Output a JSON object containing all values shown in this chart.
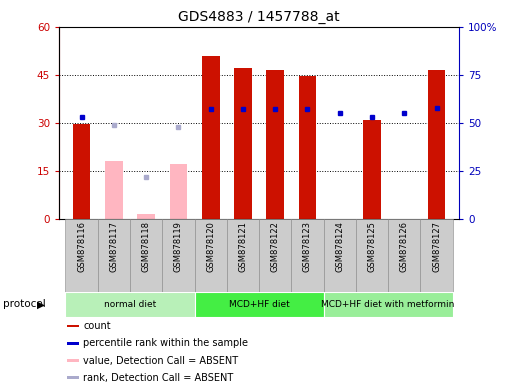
{
  "title": "GDS4883 / 1457788_at",
  "samples": [
    "GSM878116",
    "GSM878117",
    "GSM878118",
    "GSM878119",
    "GSM878120",
    "GSM878121",
    "GSM878122",
    "GSM878123",
    "GSM878124",
    "GSM878125",
    "GSM878126",
    "GSM878127"
  ],
  "count_present": [
    29.5,
    0,
    0,
    0,
    51,
    47,
    46.5,
    44.5,
    0,
    31,
    0,
    46.5
  ],
  "count_absent": [
    0,
    18,
    1.5,
    17,
    0,
    0,
    0,
    0,
    0,
    0,
    0,
    0
  ],
  "rank_present": [
    53,
    0,
    0,
    0,
    57,
    57,
    57,
    57,
    55,
    53,
    55,
    58
  ],
  "rank_absent": [
    0,
    49,
    22,
    48,
    0,
    0,
    0,
    0,
    0,
    0,
    0,
    0
  ],
  "absent_flags": [
    false,
    true,
    true,
    true,
    false,
    false,
    false,
    false,
    false,
    false,
    false,
    false
  ],
  "protocol_groups": [
    {
      "label": "normal diet",
      "start": 0,
      "end": 3
    },
    {
      "label": "MCD+HF diet",
      "start": 4,
      "end": 7
    },
    {
      "label": "MCD+HF diet with metformin",
      "start": 8,
      "end": 11
    }
  ],
  "group_colors": [
    "#B8F0B8",
    "#44EE44",
    "#99EE99"
  ],
  "ylim_left": [
    0,
    60
  ],
  "ylim_right": [
    0,
    100
  ],
  "yticks_left": [
    0,
    15,
    30,
    45,
    60
  ],
  "ytick_labels_left": [
    "0",
    "15",
    "30",
    "45",
    "60"
  ],
  "yticks_right": [
    0,
    25,
    50,
    75,
    100
  ],
  "ytick_labels_right": [
    "0",
    "25",
    "50",
    "75",
    "100%"
  ],
  "bar_color_present": "#CC1100",
  "bar_color_absent": "#FFB6C1",
  "dot_color_present": "#0000CC",
  "dot_color_absent": "#AAAACC",
  "bar_width": 0.55,
  "legend_items": [
    {
      "color": "#CC1100",
      "label": "count"
    },
    {
      "color": "#0000CC",
      "label": "percentile rank within the sample"
    },
    {
      "color": "#FFB6C1",
      "label": "value, Detection Call = ABSENT"
    },
    {
      "color": "#AAAACC",
      "label": "rank, Detection Call = ABSENT"
    }
  ],
  "protocol_label": "protocol",
  "tick_label_color_left": "#CC0000",
  "tick_label_color_right": "#0000BB",
  "col_bg_color": "#CCCCCC",
  "col_border_color": "#888888"
}
